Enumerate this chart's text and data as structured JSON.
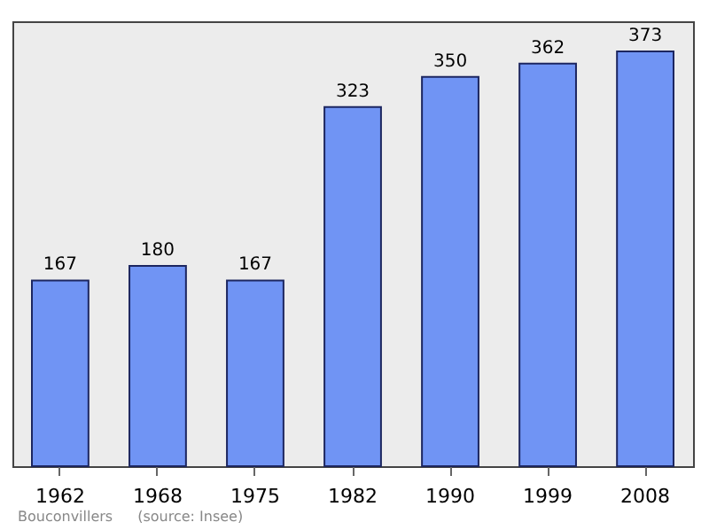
{
  "chart_data": {
    "type": "bar",
    "categories": [
      "1962",
      "1968",
      "1975",
      "1982",
      "1990",
      "1999",
      "2008"
    ],
    "values": [
      167,
      180,
      167,
      323,
      350,
      362,
      373
    ],
    "color": "#7094f4",
    "data_labels": true,
    "grid": false,
    "annotations": [
      "Bouconvillers",
      "(source: Insee)"
    ]
  }
}
